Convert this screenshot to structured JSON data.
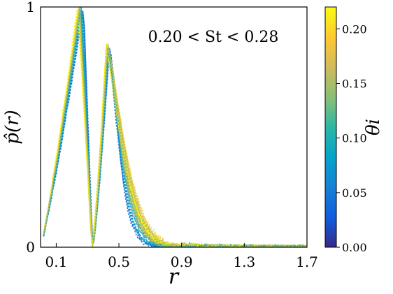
{
  "chart_data": {
    "type": "scatter",
    "title": "",
    "annotation": "0.20 < St < 0.28",
    "xlabel": "r",
    "ylabel": "p̂(r)",
    "xlim": [
      0.0,
      1.7
    ],
    "ylim": [
      0,
      1
    ],
    "xticks": [
      0.1,
      0.5,
      0.9,
      1.3,
      1.7
    ],
    "xtick_labels": [
      "0.1",
      "0.5",
      "0.9",
      "1.3",
      "1.7"
    ],
    "yticks": [
      0,
      1
    ],
    "ytick_labels": [
      "0",
      "1"
    ],
    "grid": false,
    "legend": "none",
    "colorbar": {
      "label": "θi",
      "range": [
        0.0,
        0.22
      ],
      "ticks": [
        0.0,
        0.05,
        0.1,
        0.15,
        0.2
      ],
      "tick_labels": [
        "0.00",
        "0.05",
        "0.10",
        "0.15",
        "0.20"
      ],
      "colormap": "parula",
      "colors": [
        "#352a87",
        "#0f5cdd",
        "#1481d6",
        "#06a4ca",
        "#2eb7a4",
        "#87bf77",
        "#d1bb59",
        "#fec832",
        "#f9fb0e"
      ]
    },
    "series_shape": {
      "description": "Many overlapping curves colored by theta_i; first peak near r=0.24 (normalized to 1), drop to 0 at r=0.32, second peak ~0.83 near r=0.42, long tail to r=1.7",
      "first_peak_r": 0.24,
      "gap_r": 0.33,
      "second_peak_r": 0.42,
      "second_peak_value": 0.83
    }
  }
}
